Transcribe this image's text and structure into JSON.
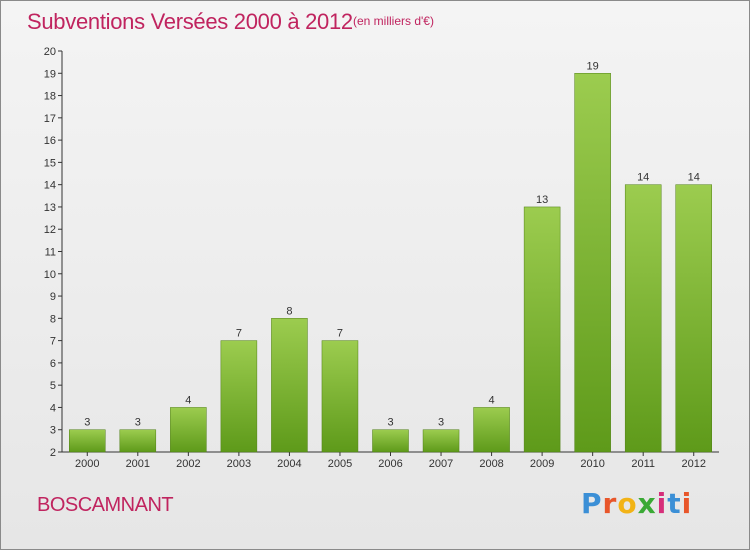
{
  "header": {
    "title": "Subventions Versées 2000 à 2012",
    "subtitle": "(en milliers d'€)"
  },
  "footer": {
    "commune": "BOSCAMNANT",
    "brand": "Proxiti",
    "brand_colors": [
      "#3b8fd6",
      "#e8562a",
      "#f2b316",
      "#3aa935",
      "#d62e7a",
      "#3b8fd6",
      "#e8562a"
    ]
  },
  "colors": {
    "bar_light": "#9ccc4f",
    "bar_dark": "#5e9a1a",
    "accent": "#c0245f"
  },
  "chart_data": {
    "type": "bar",
    "title": "Subventions Versées 2000 à 2012",
    "subtitle": "(en milliers d'€)",
    "categories": [
      "2000",
      "2001",
      "2002",
      "2003",
      "2004",
      "2005",
      "2006",
      "2007",
      "2008",
      "2009",
      "2010",
      "2011",
      "2012"
    ],
    "values": [
      3,
      3,
      4,
      7,
      8,
      7,
      3,
      3,
      4,
      13,
      19,
      14,
      14
    ],
    "yticks": [
      2,
      3,
      4,
      5,
      6,
      7,
      8,
      9,
      10,
      11,
      12,
      13,
      14,
      15,
      16,
      17,
      18,
      19,
      20
    ],
    "ylim": [
      2,
      20
    ],
    "grid": false,
    "legend": "none"
  }
}
